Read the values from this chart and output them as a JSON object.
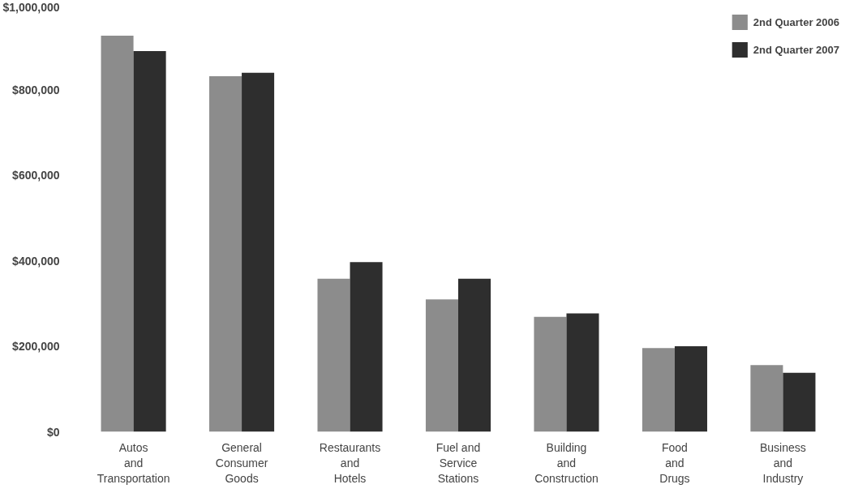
{
  "chart_data": {
    "type": "bar",
    "categories": [
      "Autos\nand\nTransportation",
      "General\nConsumer\nGoods",
      "Restaurants\nand\nHotels",
      "Fuel and\nService\nStations",
      "Building\nand\nConstruction",
      "Food\nand\nDrugs",
      "Business\nand\nIndustry"
    ],
    "series": [
      {
        "name": "2nd Quarter 2006",
        "color": "#8c8c8c",
        "values": [
          927000,
          832000,
          358000,
          310000,
          269000,
          196000,
          156000
        ]
      },
      {
        "name": "2nd Quarter 2007",
        "color": "#2e2e2e",
        "values": [
          891000,
          840000,
          397000,
          358000,
          277000,
          200000,
          138000
        ]
      }
    ],
    "ylim": [
      0,
      1000000
    ],
    "yticks": [
      {
        "value": 0,
        "label": "$0"
      },
      {
        "value": 200000,
        "label": "$200,000"
      },
      {
        "value": 400000,
        "label": "$400,000"
      },
      {
        "value": 600000,
        "label": "$600,000"
      },
      {
        "value": 800000,
        "label": "$800,000"
      },
      {
        "value": 1000000,
        "label": "$1,000,000"
      }
    ],
    "grid": false,
    "legend": "top right"
  }
}
